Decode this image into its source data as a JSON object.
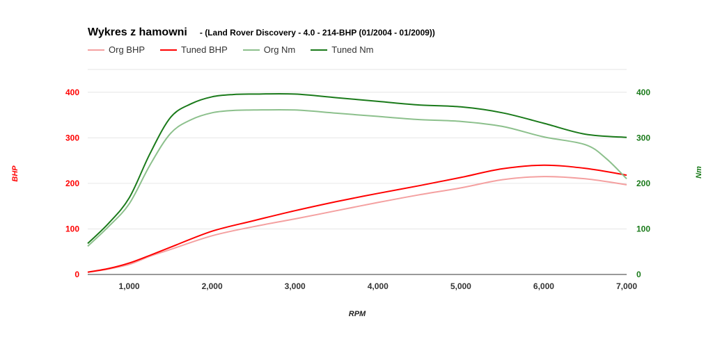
{
  "chart_data": {
    "type": "line",
    "title": "Wykres z hamowni",
    "subtitle": "- (Land Rover Discovery - 4.0 - 214-BHP (01/2004 - 01/2009))",
    "xlabel": "RPM",
    "ylabel_left": "BHP",
    "ylabel_right": "Nm",
    "xlim": [
      500,
      7000
    ],
    "ylim_left": [
      0,
      450
    ],
    "ylim_right": [
      0,
      450
    ],
    "x_ticks": [
      1000,
      2000,
      3000,
      4000,
      5000,
      6000,
      7000
    ],
    "x_tick_labels": [
      "1,000",
      "2,000",
      "3,000",
      "4,000",
      "5,000",
      "6,000",
      "7,000"
    ],
    "y_ticks_left": [
      0,
      100,
      200,
      300,
      400
    ],
    "y_ticks_right": [
      0,
      100,
      200,
      300,
      400
    ],
    "grid": true,
    "legend_position": "top-left",
    "colors": {
      "left_axis": "#ff0000",
      "right_axis": "#1a7a1a",
      "tick_x": "#333333",
      "grid": "#e6e6e6"
    },
    "series": [
      {
        "name": "Org BHP",
        "axis": "left",
        "color": "#f4a0a0",
        "x": [
          500,
          750,
          1000,
          1250,
          1500,
          2000,
          2500,
          3000,
          3500,
          4000,
          4500,
          5000,
          5500,
          6000,
          6500,
          7000
        ],
        "values": [
          5,
          12,
          22,
          40,
          55,
          85,
          105,
          122,
          140,
          158,
          175,
          190,
          208,
          215,
          210,
          197
        ]
      },
      {
        "name": "Tuned BHP",
        "axis": "left",
        "color": "#ff0000",
        "x": [
          500,
          750,
          1000,
          1250,
          1500,
          2000,
          2500,
          3000,
          3500,
          4000,
          4500,
          5000,
          5500,
          6000,
          6500,
          7000
        ],
        "values": [
          5,
          13,
          25,
          42,
          60,
          95,
          118,
          140,
          160,
          178,
          195,
          213,
          232,
          240,
          233,
          218
        ]
      },
      {
        "name": "Org Nm",
        "axis": "right",
        "color": "#8cc08c",
        "x": [
          500,
          750,
          1000,
          1250,
          1500,
          1750,
          2000,
          2250,
          2500,
          3000,
          3500,
          4000,
          4500,
          5000,
          5500,
          6000,
          6500,
          6750,
          7000
        ],
        "values": [
          62,
          105,
          155,
          240,
          310,
          340,
          355,
          360,
          361,
          361,
          354,
          347,
          340,
          336,
          325,
          302,
          285,
          255,
          210
        ]
      },
      {
        "name": "Tuned Nm",
        "axis": "right",
        "color": "#1a7a1a",
        "x": [
          500,
          750,
          1000,
          1250,
          1500,
          1750,
          2000,
          2250,
          2500,
          3000,
          3500,
          4000,
          4500,
          5000,
          5500,
          6000,
          6500,
          7000
        ],
        "values": [
          68,
          112,
          168,
          265,
          345,
          375,
          390,
          395,
          396,
          396,
          388,
          380,
          372,
          368,
          355,
          332,
          308,
          301
        ]
      }
    ]
  }
}
